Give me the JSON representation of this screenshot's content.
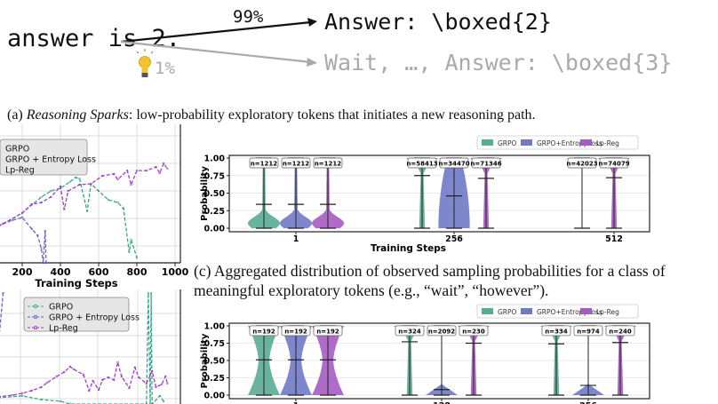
{
  "panel_a": {
    "prefix": "answer is 2.",
    "high_prob": "99%",
    "high_branch": "Answer: \\boxed{2}",
    "low_prob": "1%",
    "low_branch": "Wait, …, Answer: \\boxed{3}",
    "icon": "lightbulb-icon",
    "caption_label": "(a) ",
    "caption_italic": "Reasoning Sparks",
    "caption_rest": ": low-probability exploratory tokens that initiates a new reasoning path."
  },
  "colors": {
    "grpo": "#5aab94",
    "entropy": "#7079c6",
    "lpreg": "#a55cc2",
    "grpo_line": "#3aa588",
    "entropy_line": "#6a5fd0",
    "lpreg_line": "#a23fc9"
  },
  "caption_c": {
    "line1": "(c) Aggregated distribution of observed sampling probabilities for a class of",
    "line2": "meaningful exploratory tokens (e.g., “wait”, “however”)."
  },
  "chart_data": [
    {
      "type": "line",
      "id": "left-top",
      "xlabel": "Training Steps",
      "xticks": [
        "200",
        "400",
        "600",
        "800",
        "1000"
      ],
      "xlim": [
        0,
        1000
      ],
      "grid": true,
      "legend": "top-left",
      "series": [
        {
          "name": "GRPO",
          "key": "grpo_line",
          "x": [
            50,
            100,
            200,
            300,
            350,
            400,
            450,
            480,
            500,
            540,
            560,
            600,
            650,
            700,
            730,
            760,
            770,
            800
          ],
          "y": [
            1.26,
            1.42,
            1.81,
            2.39,
            2.61,
            2.71,
            2.94,
            3.1,
            3.06,
            1.87,
            2.87,
            2.61,
            2.29,
            2.19,
            1.97,
            0.39,
            0.84,
            0.19
          ]
        },
        {
          "name": "GRPO + Entropy Loss",
          "key": "entropy_line",
          "x": [
            50,
            100,
            150,
            200,
            250,
            280,
            300,
            310,
            320,
            325
          ],
          "y": [
            1.23,
            1.42,
            1.55,
            1.65,
            1.23,
            1.0,
            0.52,
            0,
            1.16,
            0
          ]
        },
        {
          "name": "Lp-Reg",
          "key": "lpreg_line",
          "x": [
            50,
            100,
            200,
            250,
            300,
            350,
            400,
            420,
            440,
            500,
            560,
            620,
            680,
            700,
            750,
            770,
            800,
            850,
            900,
            920,
            940,
            960
          ],
          "y": [
            1.23,
            1.42,
            1.81,
            2.13,
            2.19,
            2.39,
            2.77,
            1.94,
            2.61,
            2.84,
            2.87,
            3.16,
            3.23,
            3.03,
            3.35,
            2.84,
            3.35,
            3.35,
            3.48,
            3.26,
            3.61,
            3.42
          ]
        }
      ]
    },
    {
      "type": "line",
      "id": "left-bottom",
      "xlim": [
        0,
        1000
      ],
      "grid": true,
      "legend": "top-center",
      "series": [
        {
          "name": "GRPO",
          "key": "grpo_line",
          "x": [
            70,
            200,
            300,
            400,
            450,
            850,
            860,
            870,
            875,
            880,
            920,
            940
          ],
          "y": [
            0.29,
            0.38,
            0.21,
            0.13,
            0,
            0,
            5.2,
            0,
            5.2,
            0,
            0.38,
            0.13
          ]
        },
        {
          "name": "GRPO + Entropy Loss",
          "key": "entropy_line",
          "x": [
            50,
            100
          ],
          "y": [
            0.33,
            5.2
          ]
        },
        {
          "name": "Lp-Reg",
          "key": "lpreg_line",
          "x": [
            70,
            150,
            200,
            250,
            300,
            330,
            380,
            420,
            450,
            470,
            520,
            550,
            570,
            600,
            620,
            650,
            680,
            700,
            720,
            760,
            790,
            810,
            850,
            880,
            900,
            930,
            950,
            960
          ],
          "y": [
            0.33,
            0.42,
            0.5,
            0.63,
            0.79,
            1.0,
            1.29,
            1.5,
            1.75,
            1.63,
            1.38,
            0.63,
            1.08,
            0.67,
            1.13,
            1.25,
            1.13,
            1.96,
            1.29,
            0.75,
            1.71,
            1.25,
            0.96,
            1.54,
            0.79,
            0.92,
            1.29,
            0.96
          ]
        }
      ]
    },
    {
      "type": "violin",
      "id": "panel-b",
      "xlabel": "Training Steps",
      "ylabel": "Probability",
      "ylim": [
        0,
        1
      ],
      "yticks": [
        "0.00",
        "0.25",
        "0.50",
        "0.75",
        "1.00"
      ],
      "legend": "top-right",
      "legend_entries": [
        {
          "name": "GRPO",
          "key": "grpo"
        },
        {
          "name": "GRPO+Entropy loss",
          "key": "entropy"
        },
        {
          "name": "Lp-Reg",
          "key": "lpreg"
        }
      ],
      "groups": [
        {
          "label": "1",
          "violins": [
            {
              "series": "grpo",
              "n": "n=1212",
              "mean": 0.34,
              "shape": "low"
            },
            {
              "series": "entropy",
              "n": "n=1212",
              "mean": 0.34,
              "shape": "low"
            },
            {
              "series": "lpreg",
              "n": "n=1212",
              "mean": 0.34,
              "shape": "low"
            }
          ]
        },
        {
          "label": "256",
          "violins": [
            {
              "series": "grpo",
              "n": "n=58413",
              "mean": 0.75,
              "shape": "high"
            },
            {
              "series": "entropy",
              "n": "n=34470",
              "mean": 0.46,
              "shape": "broad"
            },
            {
              "series": "lpreg",
              "n": "n=71346",
              "mean": 0.71,
              "shape": "high"
            }
          ]
        },
        {
          "label": "512",
          "violins": [
            {
              "series": "grpo",
              "n": "n=42023",
              "mean": null,
              "shape": "veryhigh"
            },
            {
              "series": "lpreg",
              "n": "n=74079",
              "mean": 0.72,
              "shape": "high"
            }
          ]
        }
      ]
    },
    {
      "type": "violin",
      "id": "panel-d",
      "ylabel": "Probability",
      "ylim": [
        0,
        1
      ],
      "yticks": [
        "0.00",
        "0.25",
        "0.50",
        "0.75",
        "1.00"
      ],
      "legend": "top-right",
      "legend_entries": [
        {
          "name": "GRPO",
          "key": "grpo"
        },
        {
          "name": "GRPO+Entropy loss",
          "key": "entropy"
        },
        {
          "name": "Lp-Reg",
          "key": "lpreg"
        }
      ],
      "groups": [
        {
          "label": "1",
          "violins": [
            {
              "series": "grpo",
              "n": "n=192",
              "mean": 0.51,
              "shape": "hourglass"
            },
            {
              "series": "entropy",
              "n": "n=192",
              "mean": 0.51,
              "shape": "hourglass"
            },
            {
              "series": "lpreg",
              "n": "n=192",
              "mean": 0.51,
              "shape": "hourglass"
            }
          ]
        },
        {
          "label": "128",
          "violins": [
            {
              "series": "grpo",
              "n": "n=324",
              "mean": 0.77,
              "shape": "high"
            },
            {
              "series": "entropy",
              "n": "n=2092",
              "mean": 0.08,
              "shape": "zero"
            },
            {
              "series": "lpreg",
              "n": "n=230",
              "mean": 0.75,
              "shape": "high"
            }
          ]
        },
        {
          "label": "256",
          "violins": [
            {
              "series": "grpo",
              "n": "n=334",
              "mean": 0.74,
              "shape": "high"
            },
            {
              "series": "entropy",
              "n": "n=974",
              "mean": 0.14,
              "shape": "zero"
            },
            {
              "series": "lpreg",
              "n": "n=240",
              "mean": 0.76,
              "shape": "high"
            }
          ]
        }
      ]
    }
  ]
}
